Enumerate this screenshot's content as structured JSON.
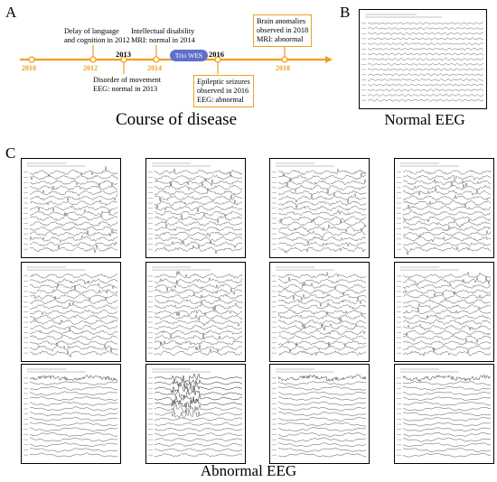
{
  "panel_labels": {
    "a": "A",
    "b": "B",
    "c": "C"
  },
  "timeline": {
    "years": [
      {
        "label": "2010",
        "bold": false
      },
      {
        "label": "2012",
        "bold": false
      },
      {
        "label": "2013",
        "bold": true
      },
      {
        "label": "2014",
        "bold": false
      },
      {
        "label": "2016",
        "bold": true
      },
      {
        "label": "2018",
        "bold": false
      }
    ],
    "events": [
      {
        "text": "Delay of language\nand cognition in 2012"
      },
      {
        "text": "Disorder of movement\nEEG: normal in 2013"
      },
      {
        "text": "Intellectual disability\nMRI: normal in 2014"
      },
      {
        "text": "Epileptic seizures\nobserved in 2016\nEEG: abnormal"
      },
      {
        "text": "Brain anomalies\nobserved in 2018\nMRI: abnormal"
      }
    ],
    "wes_label": "Trio WES",
    "caption": "Course of disease"
  },
  "normal_eeg": {
    "caption": "Normal EEG"
  },
  "abnormal_eeg": {
    "caption": "Abnormal EEG",
    "panel_count": 12
  },
  "colors": {
    "timeline": "#f0a020",
    "wes_pill": "#5f72c9",
    "trace": "#555555"
  }
}
